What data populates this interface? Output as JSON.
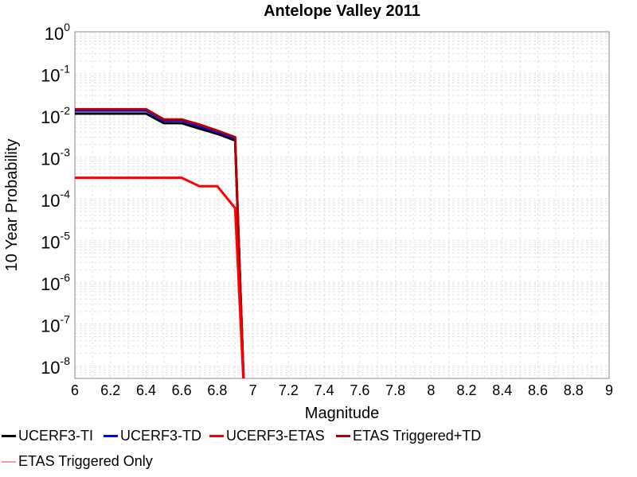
{
  "chart_data": {
    "type": "line",
    "title": "Antelope Valley 2011",
    "xlabel": "Magnitude",
    "ylabel": "10 Year Probability",
    "xlim": [
      6,
      9
    ],
    "ylim_exponents": [
      -8.3,
      0
    ],
    "yscale": "log",
    "grid": true,
    "legend_position": "bottom",
    "x_ticks": [
      "6",
      "6.2",
      "6.4",
      "6.6",
      "6.8",
      "7",
      "7.2",
      "7.4",
      "7.6",
      "7.8",
      "8",
      "8.2",
      "8.4",
      "8.6",
      "8.8",
      "9"
    ],
    "y_ticks": [
      {
        "base": "10",
        "exp": "0",
        "value": 1
      },
      {
        "base": "10",
        "exp": "-1",
        "value": 0.1
      },
      {
        "base": "10",
        "exp": "-2",
        "value": 0.01
      },
      {
        "base": "10",
        "exp": "-3",
        "value": 0.001
      },
      {
        "base": "10",
        "exp": "-4",
        "value": 0.0001
      },
      {
        "base": "10",
        "exp": "-5",
        "value": 1e-05
      },
      {
        "base": "10",
        "exp": "-6",
        "value": 1e-06
      },
      {
        "base": "10",
        "exp": "-7",
        "value": 1e-07
      },
      {
        "base": "10",
        "exp": "-8",
        "value": 1e-08
      }
    ],
    "series": [
      {
        "name": "UCERF3-TI",
        "color": "#000000",
        "x": [
          6.0,
          6.4,
          6.5,
          6.6,
          6.7,
          6.8,
          6.9,
          6.95
        ],
        "y": [
          0.011,
          0.011,
          0.0065,
          0.0065,
          0.0048,
          0.0036,
          0.0025,
          1e-10
        ]
      },
      {
        "name": "UCERF3-TD",
        "color": "#0000ff",
        "x": [
          6.0,
          6.4,
          6.5,
          6.6,
          6.7,
          6.8,
          6.9,
          6.95
        ],
        "y": [
          0.013,
          0.013,
          0.0075,
          0.0075,
          0.0055,
          0.004,
          0.0028,
          1e-10
        ]
      },
      {
        "name": "UCERF3-ETAS",
        "color": "#ff0000",
        "x": [
          6.0,
          6.4,
          6.5,
          6.6,
          6.7,
          6.8,
          6.9,
          6.95
        ],
        "y": [
          0.00032,
          0.00032,
          0.00032,
          0.00032,
          0.0002,
          0.0002,
          6e-05,
          1e-10
        ]
      },
      {
        "name": "ETAS Triggered+TD",
        "color": "#b30000",
        "x": [
          6.0,
          6.4,
          6.5,
          6.6,
          6.7,
          6.8,
          6.9,
          6.95
        ],
        "y": [
          0.014,
          0.014,
          0.008,
          0.008,
          0.006,
          0.0043,
          0.003,
          1e-10
        ]
      },
      {
        "name": "ETAS Triggered Only",
        "color": "#ff9999",
        "x": [],
        "y": []
      }
    ]
  }
}
